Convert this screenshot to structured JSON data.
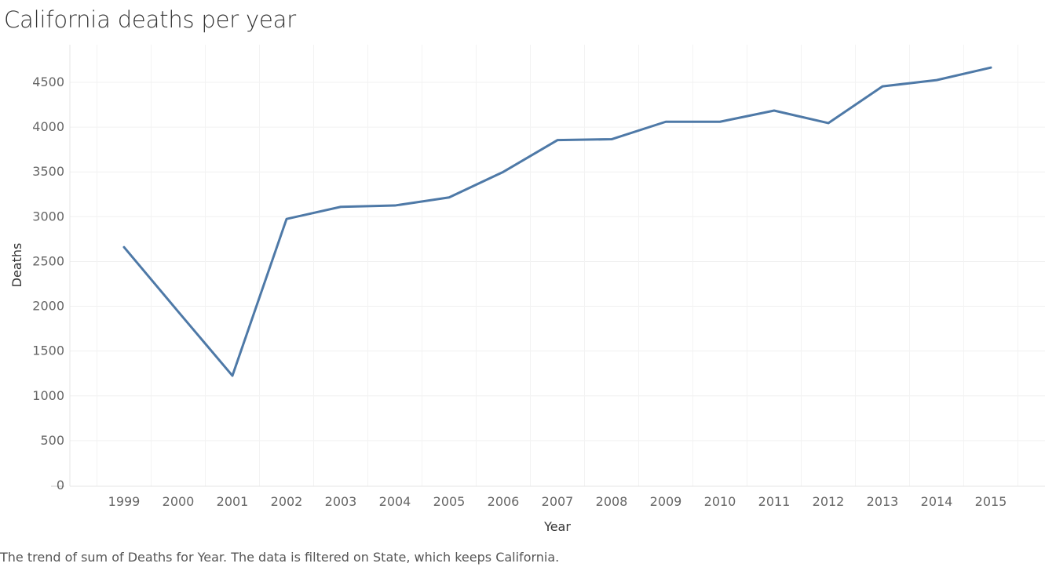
{
  "chart_data": {
    "type": "line",
    "title": "California deaths per year",
    "xlabel": "Year",
    "ylabel": "Deaths",
    "categories": [
      "1999",
      "2000",
      "2001",
      "2002",
      "2003",
      "2004",
      "2005",
      "2006",
      "2007",
      "2008",
      "2009",
      "2010",
      "2011",
      "2012",
      "2013",
      "2014",
      "2015"
    ],
    "series": [
      {
        "name": "Deaths",
        "values": [
          2660,
          1940,
          1225,
          2975,
          3110,
          3125,
          3215,
          3500,
          3855,
          3865,
          4060,
          4060,
          4185,
          4045,
          4455,
          4525,
          4665
        ]
      }
    ],
    "yticks": [
      0,
      500,
      1000,
      1500,
      2000,
      2500,
      3000,
      3500,
      4000,
      4500
    ],
    "ylim": [
      0,
      4900
    ],
    "grid": true,
    "line_color": "#4e79a7",
    "caption": "The trend of sum of Deaths for Year. The data is filtered on State, which keeps California."
  }
}
